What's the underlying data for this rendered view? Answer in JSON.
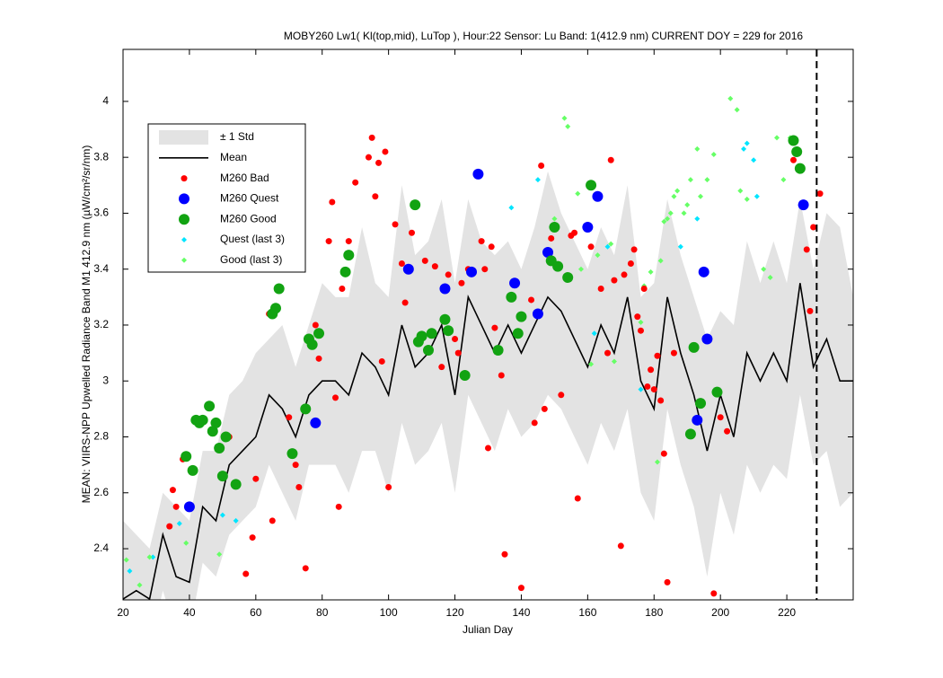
{
  "chart_data": {
    "type": "scatter",
    "title": "MOBY260   Lw1( Kl(top,mid), LuTop ),   Hour:22 Sensor: Lu Band: 1(412.9 nm)   CURRENT DOY = 229 for 2016",
    "x_label": "Julian Day",
    "y_label": "MEAN: VIIRS-NPP Upwelled Radiance Band M1 412.9 nm (µW/cm²/sr/nm)",
    "xlim": [
      20,
      240
    ],
    "ylim": [
      2.217,
      4.186
    ],
    "xticks": [
      20,
      40,
      60,
      80,
      100,
      120,
      140,
      160,
      180,
      200,
      220
    ],
    "yticks": [
      2.4,
      2.6,
      2.8,
      3,
      3.2,
      3.4,
      3.6,
      3.8,
      4
    ],
    "legend": "upper left",
    "current_doy_line": 229,
    "series": [
      {
        "name": "± 1 Std",
        "mode": "band",
        "color": "#e3e3e3",
        "x": [
          20,
          24,
          28,
          32,
          36,
          40,
          44,
          48,
          52,
          56,
          60,
          64,
          68,
          72,
          76,
          80,
          84,
          88,
          92,
          96,
          100,
          104,
          108,
          112,
          116,
          120,
          124,
          128,
          132,
          136,
          140,
          144,
          148,
          152,
          156,
          160,
          164,
          168,
          172,
          176,
          180,
          184,
          188,
          192,
          196,
          200,
          204,
          208,
          212,
          216,
          220,
          224,
          228,
          232,
          236,
          240
        ],
        "upper": [
          2.5,
          2.45,
          2.4,
          2.6,
          2.55,
          2.5,
          2.75,
          2.75,
          2.95,
          3.0,
          3.1,
          3.15,
          3.2,
          3.05,
          3.2,
          3.35,
          3.3,
          3.3,
          3.55,
          3.35,
          3.3,
          3.7,
          3.45,
          3.5,
          3.65,
          3.35,
          3.65,
          3.5,
          3.45,
          3.5,
          3.4,
          3.55,
          3.75,
          3.6,
          3.5,
          3.4,
          3.55,
          3.45,
          3.7,
          3.3,
          3.35,
          3.65,
          3.45,
          3.3,
          3.15,
          3.25,
          3.2,
          3.5,
          3.35,
          3.5,
          3.35,
          3.65,
          3.4,
          3.6,
          3.55,
          3.3
        ],
        "lower": [
          2.1,
          2.1,
          2.05,
          2.25,
          2.1,
          2.1,
          2.35,
          2.3,
          2.45,
          2.5,
          2.55,
          2.7,
          2.6,
          2.5,
          2.7,
          2.7,
          2.7,
          2.6,
          2.75,
          2.75,
          2.6,
          2.85,
          2.7,
          2.75,
          2.85,
          2.6,
          2.95,
          2.85,
          2.75,
          2.9,
          2.8,
          2.85,
          2.95,
          2.9,
          2.8,
          2.7,
          2.85,
          2.75,
          2.9,
          2.6,
          2.5,
          2.9,
          2.7,
          2.55,
          2.3,
          2.6,
          2.45,
          2.7,
          2.6,
          2.7,
          2.65,
          2.95,
          2.7,
          2.75,
          2.55,
          2.6
        ]
      },
      {
        "name": "Mean",
        "mode": "line",
        "color": "#000000",
        "x": [
          20,
          24,
          28,
          32,
          36,
          40,
          44,
          48,
          52,
          56,
          60,
          64,
          68,
          72,
          76,
          80,
          84,
          88,
          92,
          96,
          100,
          104,
          108,
          112,
          116,
          120,
          124,
          128,
          132,
          136,
          140,
          144,
          148,
          152,
          156,
          160,
          164,
          168,
          172,
          176,
          180,
          184,
          188,
          192,
          196,
          200,
          204,
          208,
          212,
          216,
          220,
          224,
          228,
          232,
          236,
          240
        ],
        "values": [
          2.22,
          2.25,
          2.22,
          2.45,
          2.3,
          2.28,
          2.55,
          2.5,
          2.7,
          2.75,
          2.8,
          2.95,
          2.9,
          2.8,
          2.95,
          3.0,
          3.0,
          2.95,
          3.1,
          3.05,
          2.95,
          3.2,
          3.05,
          3.1,
          3.2,
          2.95,
          3.3,
          3.2,
          3.1,
          3.2,
          3.1,
          3.2,
          3.3,
          3.25,
          3.15,
          3.05,
          3.2,
          3.1,
          3.3,
          3.0,
          2.9,
          3.3,
          3.1,
          2.95,
          2.75,
          2.95,
          2.8,
          3.1,
          3.0,
          3.1,
          3.0,
          3.35,
          3.05,
          3.15,
          3.0,
          3.0
        ]
      },
      {
        "name": "M260 Bad",
        "mode": "markers",
        "marker": "small-dot",
        "color": "#ff0000",
        "x": [
          34,
          35,
          36,
          38,
          52,
          57,
          59,
          60,
          64,
          65,
          70,
          72,
          73,
          75,
          78,
          79,
          82,
          83,
          84,
          85,
          86,
          88,
          90,
          94,
          95,
          96,
          97,
          98,
          99,
          100,
          102,
          104,
          105,
          107,
          111,
          114,
          116,
          118,
          120,
          121,
          122,
          124,
          128,
          129,
          130,
          131,
          132,
          134,
          135,
          140,
          143,
          144,
          146,
          147,
          149,
          152,
          155,
          156,
          157,
          161,
          164,
          166,
          167,
          168,
          170,
          171,
          173,
          174,
          175,
          176,
          177,
          178,
          179,
          180,
          181,
          182,
          183,
          184,
          186,
          198,
          200,
          202,
          222,
          226,
          227,
          228,
          230
        ],
        "values": [
          2.48,
          2.61,
          2.55,
          2.72,
          2.8,
          2.31,
          2.44,
          2.65,
          3.24,
          2.5,
          2.87,
          2.7,
          2.62,
          2.33,
          3.2,
          3.08,
          3.5,
          3.64,
          2.94,
          2.55,
          3.33,
          3.5,
          3.71,
          3.8,
          3.87,
          3.66,
          3.78,
          3.07,
          3.82,
          2.62,
          3.56,
          3.42,
          3.28,
          3.53,
          3.43,
          3.41,
          3.05,
          3.38,
          3.15,
          3.1,
          3.35,
          3.4,
          3.5,
          3.4,
          2.76,
          3.48,
          3.19,
          3.02,
          2.38,
          2.26,
          3.29,
          2.85,
          3.77,
          2.9,
          3.51,
          2.95,
          3.52,
          3.53,
          2.58,
          3.48,
          3.33,
          3.1,
          3.79,
          3.36,
          2.41,
          3.38,
          3.42,
          3.47,
          3.23,
          3.18,
          3.33,
          2.98,
          3.04,
          2.97,
          3.09,
          2.93,
          2.74,
          2.28,
          3.1,
          2.24,
          2.87,
          2.82,
          3.79,
          3.47,
          3.25,
          3.55,
          3.67
        ]
      },
      {
        "name": "M260 Quest",
        "mode": "markers",
        "marker": "big-dot",
        "color": "#0000ff",
        "x": [
          40,
          78,
          106,
          117,
          125,
          127,
          138,
          145,
          148,
          160,
          163,
          193,
          195,
          196,
          225
        ],
        "values": [
          2.55,
          2.85,
          3.4,
          3.33,
          3.39,
          3.74,
          3.35,
          3.24,
          3.46,
          3.55,
          3.66,
          2.86,
          3.39,
          3.15,
          3.63
        ]
      },
      {
        "name": "M260 Good",
        "mode": "markers",
        "marker": "big-dot",
        "color": "#12a312",
        "x": [
          39,
          41,
          42,
          43,
          44,
          46,
          47,
          48,
          49,
          50,
          51,
          54,
          65,
          66,
          67,
          71,
          75,
          76,
          77,
          79,
          87,
          88,
          108,
          109,
          110,
          112,
          113,
          117,
          118,
          123,
          133,
          137,
          139,
          140,
          149,
          150,
          151,
          154,
          161,
          191,
          192,
          194,
          199,
          222,
          223,
          224
        ],
        "values": [
          2.73,
          2.68,
          2.86,
          2.85,
          2.86,
          2.91,
          2.82,
          2.85,
          2.76,
          2.66,
          2.8,
          2.63,
          3.24,
          3.26,
          3.33,
          2.74,
          2.9,
          3.15,
          3.13,
          3.17,
          3.39,
          3.45,
          3.63,
          3.14,
          3.16,
          3.11,
          3.17,
          3.22,
          3.18,
          3.02,
          3.11,
          3.3,
          3.17,
          3.23,
          3.43,
          3.55,
          3.41,
          3.37,
          3.7,
          2.81,
          3.12,
          2.92,
          2.96,
          3.86,
          3.82,
          3.76
        ]
      },
      {
        "name": "Quest (last 3)",
        "mode": "markers",
        "marker": "diamond",
        "color": "#00e5ff",
        "x": [
          22,
          29,
          37,
          50,
          54,
          137,
          145,
          162,
          166,
          176,
          188,
          193,
          207,
          208,
          210,
          211
        ],
        "values": [
          2.32,
          2.37,
          2.49,
          2.52,
          2.5,
          3.62,
          3.72,
          3.17,
          3.48,
          2.97,
          3.48,
          3.58,
          3.83,
          3.85,
          3.79,
          3.66
        ]
      },
      {
        "name": "Good (last 3)",
        "mode": "markers",
        "marker": "diamond",
        "color": "#66ff66",
        "x": [
          21,
          25,
          28,
          39,
          49,
          150,
          153,
          154,
          157,
          158,
          161,
          163,
          167,
          168,
          176,
          177,
          179,
          181,
          182,
          183,
          184,
          185,
          186,
          187,
          189,
          190,
          191,
          193,
          194,
          196,
          198,
          203,
          205,
          206,
          208,
          213,
          215,
          217,
          219,
          221
        ],
        "values": [
          2.36,
          2.27,
          2.37,
          2.42,
          2.38,
          3.58,
          3.94,
          3.91,
          3.67,
          3.4,
          3.06,
          3.45,
          3.49,
          3.07,
          3.21,
          3.34,
          3.39,
          2.71,
          3.43,
          3.57,
          3.58,
          3.6,
          3.66,
          3.68,
          3.6,
          3.63,
          3.72,
          3.83,
          3.66,
          3.72,
          3.81,
          4.01,
          3.97,
          3.68,
          3.65,
          3.4,
          3.37,
          3.87,
          3.72,
          3.87
        ]
      }
    ]
  }
}
